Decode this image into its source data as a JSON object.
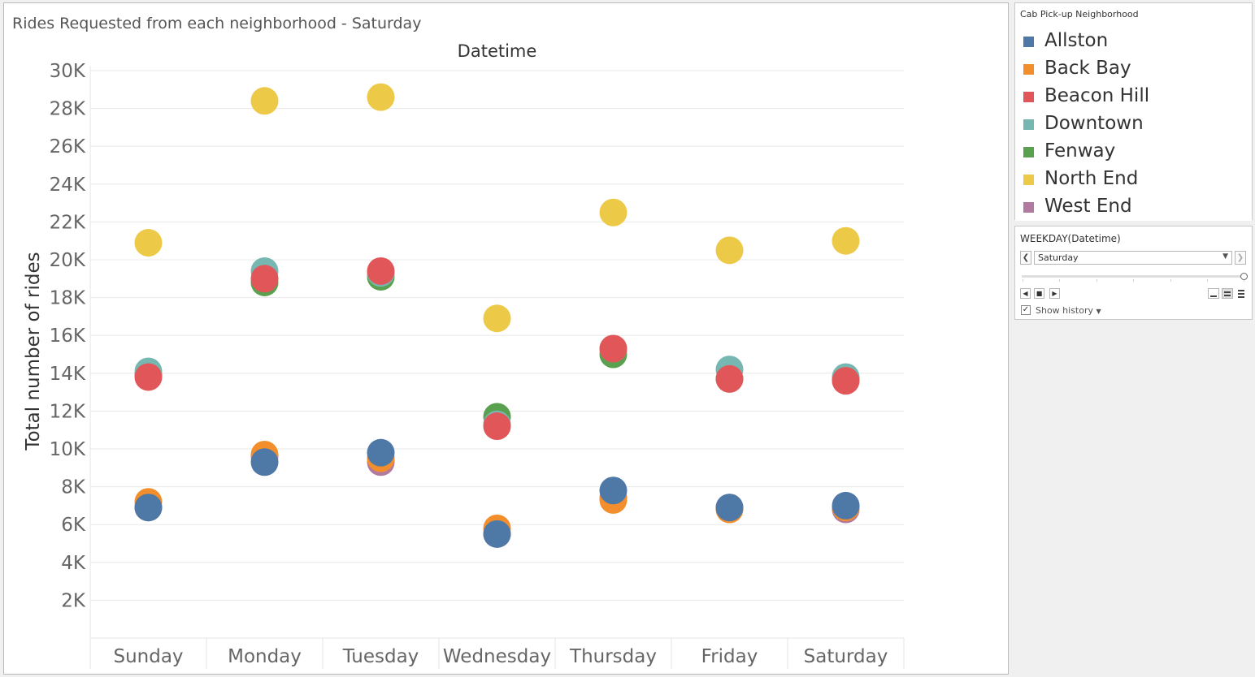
{
  "chart_data": {
    "type": "scatter",
    "title": "Rides Requested from each neighborhood - Saturday",
    "x_header": "Datetime",
    "ylabel": "Total number of rides",
    "ylim": [
      0,
      30000
    ],
    "y_ticks": [
      2000,
      4000,
      6000,
      8000,
      10000,
      12000,
      14000,
      16000,
      18000,
      20000,
      22000,
      24000,
      26000,
      28000,
      30000
    ],
    "y_tick_labels": [
      "2K",
      "4K",
      "6K",
      "8K",
      "10K",
      "12K",
      "14K",
      "16K",
      "18K",
      "20K",
      "22K",
      "24K",
      "26K",
      "28K",
      "30K"
    ],
    "categories": [
      "Sunday",
      "Monday",
      "Tuesday",
      "Wednesday",
      "Thursday",
      "Friday",
      "Saturday"
    ],
    "grid": true,
    "legend_position": "right",
    "series": [
      {
        "name": "West End",
        "color": "#b07aa1",
        "values": [
          6900,
          9600,
          9300,
          5500,
          7400,
          6900,
          6800
        ]
      },
      {
        "name": "Back Bay",
        "color": "#f28e2b",
        "values": [
          7200,
          9700,
          9500,
          5800,
          7300,
          6800,
          6900
        ]
      },
      {
        "name": "Allston",
        "color": "#4e79a7",
        "values": [
          6900,
          9300,
          9800,
          5500,
          7800,
          6900,
          7000
        ]
      },
      {
        "name": "Fenway",
        "color": "#59a14f",
        "values": [
          13900,
          18800,
          19100,
          11700,
          15000,
          13700,
          13700
        ]
      },
      {
        "name": "Downtown",
        "color": "#76b7b2",
        "values": [
          14100,
          19400,
          19300,
          11300,
          15300,
          14200,
          13800
        ]
      },
      {
        "name": "Beacon Hill",
        "color": "#e15759",
        "values": [
          13800,
          19000,
          19400,
          11200,
          15300,
          13700,
          13600
        ]
      },
      {
        "name": "North End",
        "color": "#edc948",
        "values": [
          20900,
          28400,
          28600,
          16900,
          22500,
          20500,
          21000
        ]
      }
    ]
  },
  "legend": {
    "title": "Cab Pick-up Neighborhood",
    "items": [
      {
        "label": "Allston",
        "color": "#4e79a7"
      },
      {
        "label": "Back Bay",
        "color": "#f28e2b"
      },
      {
        "label": "Beacon Hill",
        "color": "#e15759"
      },
      {
        "label": "Downtown",
        "color": "#76b7b2"
      },
      {
        "label": "Fenway",
        "color": "#59a14f"
      },
      {
        "label": "North End",
        "color": "#edc948"
      },
      {
        "label": "West End",
        "color": "#b07aa1"
      }
    ]
  },
  "page_filter": {
    "title": "WEEKDAY(Datetime)",
    "selected": "Saturday",
    "show_history_label": "Show history",
    "show_history_checked": true
  }
}
